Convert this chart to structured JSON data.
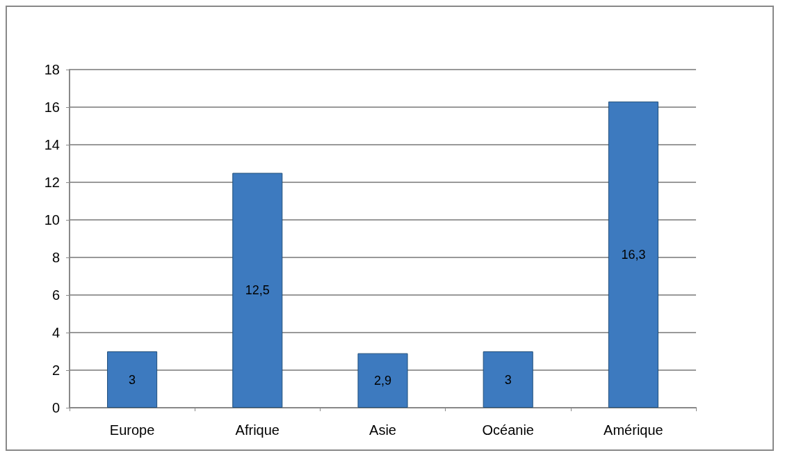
{
  "chart_data": {
    "type": "bar",
    "categories": [
      "Europe",
      "Afrique",
      "Asie",
      "Océanie",
      "Amérique"
    ],
    "values": [
      3,
      12.5,
      2.9,
      3,
      16.3
    ],
    "value_labels": [
      "3",
      "12,5",
      "2,9",
      "3",
      "16,3"
    ],
    "color": "#3d7abf",
    "ylim": [
      0,
      18
    ],
    "yticks": [
      0,
      2,
      4,
      6,
      8,
      10,
      12,
      14,
      16,
      18
    ],
    "grid": true
  }
}
